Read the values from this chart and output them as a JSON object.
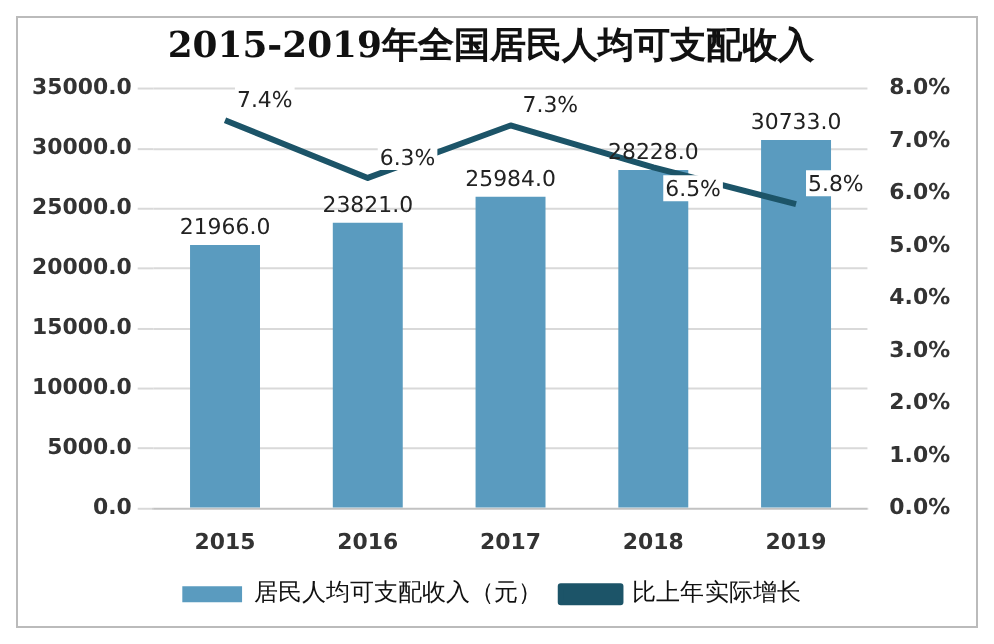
{
  "chart_data": {
    "type": "bar",
    "title": "2015-2019年全国居民人均可支配收入",
    "categories": [
      "2015",
      "2016",
      "2017",
      "2018",
      "2019"
    ],
    "series": [
      {
        "name": "居民人均可支配收入（元）",
        "color": "#5a9bbf",
        "values": [
          21966.0,
          23821.0,
          25984.0,
          28228.0,
          30733.0
        ],
        "value_labels": [
          "21966.0",
          "23821.0",
          "25984.0",
          "28228.0",
          "30733.0"
        ]
      },
      {
        "name": "比上年实际增长",
        "type": "line",
        "axis": "y2",
        "color": "#1c5468",
        "marker": "none",
        "values": [
          7.4,
          6.3,
          7.3,
          6.5,
          5.8
        ],
        "value_labels": [
          "7.4%",
          "6.3%",
          "7.3%",
          "6.5%",
          "5.8%"
        ]
      }
    ],
    "ylim": [
      0,
      35000
    ],
    "yticks": [
      {
        "value": 0,
        "label": "0.0"
      },
      {
        "value": 5000,
        "label": "5000.0"
      },
      {
        "value": 10000,
        "label": "10000.0"
      },
      {
        "value": 15000,
        "label": "15000.0"
      },
      {
        "value": 20000,
        "label": "20000.0"
      },
      {
        "value": 25000,
        "label": "25000.0"
      },
      {
        "value": 30000,
        "label": "30000.0"
      },
      {
        "value": 35000,
        "label": "35000.0"
      }
    ],
    "y2lim": [
      0,
      8
    ],
    "y2ticks": [
      {
        "value": 0,
        "label": "0.0%"
      },
      {
        "value": 1,
        "label": "1.0%"
      },
      {
        "value": 2,
        "label": "2.0%"
      },
      {
        "value": 3,
        "label": "3.0%"
      },
      {
        "value": 4,
        "label": "4.0%"
      },
      {
        "value": 5,
        "label": "5.0%"
      },
      {
        "value": 6,
        "label": "6.0%"
      },
      {
        "value": 7,
        "label": "7.0%"
      },
      {
        "value": 8,
        "label": "8.0%"
      }
    ],
    "grid": "y",
    "legend": "bottom"
  }
}
